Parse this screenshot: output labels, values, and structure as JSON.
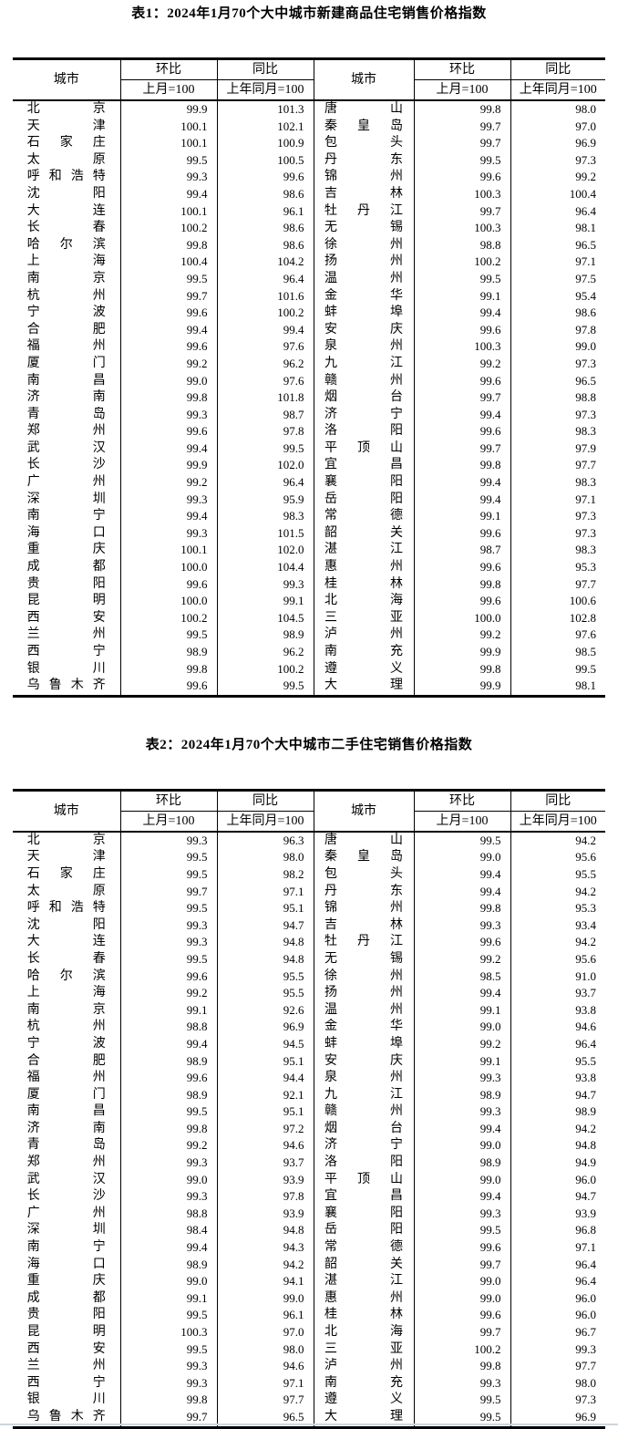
{
  "table1": {
    "title": "表1：2024年1月70个大中城市新建商品住宅销售价格指数",
    "headers": {
      "city": "城市",
      "mom": "环比",
      "yoy": "同比",
      "mom_base": "上月=100",
      "yoy_base": "上年同月=100"
    },
    "left_rows": [
      {
        "city": "北京",
        "mom": "99.9",
        "yoy": "101.3"
      },
      {
        "city": "天津",
        "mom": "100.1",
        "yoy": "102.1"
      },
      {
        "city": "石家庄",
        "mom": "100.1",
        "yoy": "100.9"
      },
      {
        "city": "太原",
        "mom": "99.5",
        "yoy": "100.5"
      },
      {
        "city": "呼和浩特",
        "mom": "99.3",
        "yoy": "99.6"
      },
      {
        "city": "沈阳",
        "mom": "99.4",
        "yoy": "98.6"
      },
      {
        "city": "大连",
        "mom": "100.1",
        "yoy": "96.1"
      },
      {
        "city": "长春",
        "mom": "100.2",
        "yoy": "98.6"
      },
      {
        "city": "哈尔滨",
        "mom": "99.8",
        "yoy": "98.6"
      },
      {
        "city": "上海",
        "mom": "100.4",
        "yoy": "104.2"
      },
      {
        "city": "南京",
        "mom": "99.5",
        "yoy": "96.4"
      },
      {
        "city": "杭州",
        "mom": "99.7",
        "yoy": "101.6"
      },
      {
        "city": "宁波",
        "mom": "99.6",
        "yoy": "100.2"
      },
      {
        "city": "合肥",
        "mom": "99.4",
        "yoy": "99.4"
      },
      {
        "city": "福州",
        "mom": "99.6",
        "yoy": "97.6"
      },
      {
        "city": "厦门",
        "mom": "99.2",
        "yoy": "96.2"
      },
      {
        "city": "南昌",
        "mom": "99.0",
        "yoy": "97.6"
      },
      {
        "city": "济南",
        "mom": "99.8",
        "yoy": "101.8"
      },
      {
        "city": "青岛",
        "mom": "99.3",
        "yoy": "98.7"
      },
      {
        "city": "郑州",
        "mom": "99.6",
        "yoy": "97.8"
      },
      {
        "city": "武汉",
        "mom": "99.4",
        "yoy": "99.5"
      },
      {
        "city": "长沙",
        "mom": "99.9",
        "yoy": "102.0"
      },
      {
        "city": "广州",
        "mom": "99.2",
        "yoy": "96.4"
      },
      {
        "city": "深圳",
        "mom": "99.3",
        "yoy": "95.9"
      },
      {
        "city": "南宁",
        "mom": "99.4",
        "yoy": "98.3"
      },
      {
        "city": "海口",
        "mom": "99.3",
        "yoy": "101.5"
      },
      {
        "city": "重庆",
        "mom": "100.1",
        "yoy": "102.0"
      },
      {
        "city": "成都",
        "mom": "100.0",
        "yoy": "104.4"
      },
      {
        "city": "贵阳",
        "mom": "99.6",
        "yoy": "99.3"
      },
      {
        "city": "昆明",
        "mom": "100.0",
        "yoy": "99.1"
      },
      {
        "city": "西安",
        "mom": "100.2",
        "yoy": "104.5"
      },
      {
        "city": "兰州",
        "mom": "99.5",
        "yoy": "98.9"
      },
      {
        "city": "西宁",
        "mom": "98.9",
        "yoy": "96.2"
      },
      {
        "city": "银川",
        "mom": "99.8",
        "yoy": "100.2"
      },
      {
        "city": "乌鲁木齐",
        "mom": "99.6",
        "yoy": "99.5"
      }
    ],
    "right_rows": [
      {
        "city": "唐山",
        "mom": "99.8",
        "yoy": "98.0"
      },
      {
        "city": "秦皇岛",
        "mom": "99.7",
        "yoy": "97.0"
      },
      {
        "city": "包头",
        "mom": "99.7",
        "yoy": "96.9"
      },
      {
        "city": "丹东",
        "mom": "99.5",
        "yoy": "97.3"
      },
      {
        "city": "锦州",
        "mom": "99.6",
        "yoy": "99.2"
      },
      {
        "city": "吉林",
        "mom": "100.3",
        "yoy": "100.4"
      },
      {
        "city": "牡丹江",
        "mom": "99.7",
        "yoy": "96.4"
      },
      {
        "city": "无锡",
        "mom": "100.3",
        "yoy": "98.1"
      },
      {
        "city": "徐州",
        "mom": "98.8",
        "yoy": "96.5"
      },
      {
        "city": "扬州",
        "mom": "100.2",
        "yoy": "97.1"
      },
      {
        "city": "温州",
        "mom": "99.5",
        "yoy": "97.5"
      },
      {
        "city": "金华",
        "mom": "99.1",
        "yoy": "95.4"
      },
      {
        "city": "蚌埠",
        "mom": "99.4",
        "yoy": "98.6"
      },
      {
        "city": "安庆",
        "mom": "99.6",
        "yoy": "97.8"
      },
      {
        "city": "泉州",
        "mom": "100.3",
        "yoy": "99.0"
      },
      {
        "city": "九江",
        "mom": "99.2",
        "yoy": "97.3"
      },
      {
        "city": "赣州",
        "mom": "99.6",
        "yoy": "96.5"
      },
      {
        "city": "烟台",
        "mom": "99.7",
        "yoy": "98.8"
      },
      {
        "city": "济宁",
        "mom": "99.4",
        "yoy": "97.3"
      },
      {
        "city": "洛阳",
        "mom": "99.6",
        "yoy": "98.3"
      },
      {
        "city": "平顶山",
        "mom": "99.7",
        "yoy": "97.9"
      },
      {
        "city": "宜昌",
        "mom": "99.8",
        "yoy": "97.7"
      },
      {
        "city": "襄阳",
        "mom": "99.4",
        "yoy": "98.3"
      },
      {
        "city": "岳阳",
        "mom": "99.4",
        "yoy": "97.1"
      },
      {
        "city": "常德",
        "mom": "99.1",
        "yoy": "97.3"
      },
      {
        "city": "韶关",
        "mom": "99.6",
        "yoy": "97.3"
      },
      {
        "city": "湛江",
        "mom": "98.7",
        "yoy": "98.3"
      },
      {
        "city": "惠州",
        "mom": "99.6",
        "yoy": "95.3"
      },
      {
        "city": "桂林",
        "mom": "99.8",
        "yoy": "97.7"
      },
      {
        "city": "北海",
        "mom": "99.6",
        "yoy": "100.6"
      },
      {
        "city": "三亚",
        "mom": "100.0",
        "yoy": "102.8"
      },
      {
        "city": "泸州",
        "mom": "99.2",
        "yoy": "97.6"
      },
      {
        "city": "南充",
        "mom": "99.9",
        "yoy": "98.5"
      },
      {
        "city": "遵义",
        "mom": "99.8",
        "yoy": "99.5"
      },
      {
        "city": "大理",
        "mom": "99.9",
        "yoy": "98.1"
      }
    ]
  },
  "table2": {
    "title": "表2：2024年1月70个大中城市二手住宅销售价格指数",
    "headers": {
      "city": "城市",
      "mom": "环比",
      "yoy": "同比",
      "mom_base": "上月=100",
      "yoy_base": "上年同月=100"
    },
    "left_rows": [
      {
        "city": "北京",
        "mom": "99.3",
        "yoy": "96.3"
      },
      {
        "city": "天津",
        "mom": "99.5",
        "yoy": "98.0"
      },
      {
        "city": "石家庄",
        "mom": "99.5",
        "yoy": "98.2"
      },
      {
        "city": "太原",
        "mom": "99.7",
        "yoy": "97.1"
      },
      {
        "city": "呼和浩特",
        "mom": "99.5",
        "yoy": "95.1"
      },
      {
        "city": "沈阳",
        "mom": "99.3",
        "yoy": "94.7"
      },
      {
        "city": "大连",
        "mom": "99.3",
        "yoy": "94.8"
      },
      {
        "city": "长春",
        "mom": "99.5",
        "yoy": "94.8"
      },
      {
        "city": "哈尔滨",
        "mom": "99.6",
        "yoy": "95.5"
      },
      {
        "city": "上海",
        "mom": "99.2",
        "yoy": "95.5"
      },
      {
        "city": "南京",
        "mom": "99.1",
        "yoy": "92.6"
      },
      {
        "city": "杭州",
        "mom": "98.8",
        "yoy": "96.9"
      },
      {
        "city": "宁波",
        "mom": "99.4",
        "yoy": "94.5"
      },
      {
        "city": "合肥",
        "mom": "98.9",
        "yoy": "95.1"
      },
      {
        "city": "福州",
        "mom": "99.6",
        "yoy": "94.4"
      },
      {
        "city": "厦门",
        "mom": "98.9",
        "yoy": "92.1"
      },
      {
        "city": "南昌",
        "mom": "99.5",
        "yoy": "95.1"
      },
      {
        "city": "济南",
        "mom": "99.8",
        "yoy": "97.2"
      },
      {
        "city": "青岛",
        "mom": "99.2",
        "yoy": "94.6"
      },
      {
        "city": "郑州",
        "mom": "99.3",
        "yoy": "93.7"
      },
      {
        "city": "武汉",
        "mom": "99.0",
        "yoy": "93.9"
      },
      {
        "city": "长沙",
        "mom": "99.3",
        "yoy": "97.8"
      },
      {
        "city": "广州",
        "mom": "98.8",
        "yoy": "93.9"
      },
      {
        "city": "深圳",
        "mom": "98.4",
        "yoy": "94.8"
      },
      {
        "city": "南宁",
        "mom": "99.4",
        "yoy": "94.3"
      },
      {
        "city": "海口",
        "mom": "98.9",
        "yoy": "94.2"
      },
      {
        "city": "重庆",
        "mom": "99.0",
        "yoy": "94.1"
      },
      {
        "city": "成都",
        "mom": "99.1",
        "yoy": "99.0"
      },
      {
        "city": "贵阳",
        "mom": "99.5",
        "yoy": "96.1"
      },
      {
        "city": "昆明",
        "mom": "100.3",
        "yoy": "97.0"
      },
      {
        "city": "西安",
        "mom": "99.5",
        "yoy": "98.0"
      },
      {
        "city": "兰州",
        "mom": "99.3",
        "yoy": "94.6"
      },
      {
        "city": "西宁",
        "mom": "99.3",
        "yoy": "97.1"
      },
      {
        "city": "银川",
        "mom": "99.8",
        "yoy": "97.7"
      },
      {
        "city": "乌鲁木齐",
        "mom": "99.7",
        "yoy": "96.5"
      }
    ],
    "right_rows": [
      {
        "city": "唐山",
        "mom": "99.5",
        "yoy": "94.2"
      },
      {
        "city": "秦皇岛",
        "mom": "99.0",
        "yoy": "95.6"
      },
      {
        "city": "包头",
        "mom": "99.4",
        "yoy": "95.5"
      },
      {
        "city": "丹东",
        "mom": "99.4",
        "yoy": "94.2"
      },
      {
        "city": "锦州",
        "mom": "99.8",
        "yoy": "95.3"
      },
      {
        "city": "吉林",
        "mom": "99.3",
        "yoy": "93.4"
      },
      {
        "city": "牡丹江",
        "mom": "99.6",
        "yoy": "94.2"
      },
      {
        "city": "无锡",
        "mom": "99.2",
        "yoy": "95.6"
      },
      {
        "city": "徐州",
        "mom": "98.5",
        "yoy": "91.0"
      },
      {
        "city": "扬州",
        "mom": "99.4",
        "yoy": "93.7"
      },
      {
        "city": "温州",
        "mom": "99.1",
        "yoy": "93.8"
      },
      {
        "city": "金华",
        "mom": "99.0",
        "yoy": "94.6"
      },
      {
        "city": "蚌埠",
        "mom": "99.2",
        "yoy": "96.4"
      },
      {
        "city": "安庆",
        "mom": "99.1",
        "yoy": "95.5"
      },
      {
        "city": "泉州",
        "mom": "99.3",
        "yoy": "93.8"
      },
      {
        "city": "九江",
        "mom": "98.9",
        "yoy": "94.7"
      },
      {
        "city": "赣州",
        "mom": "99.3",
        "yoy": "98.9"
      },
      {
        "city": "烟台",
        "mom": "99.4",
        "yoy": "94.2"
      },
      {
        "city": "济宁",
        "mom": "99.0",
        "yoy": "94.8"
      },
      {
        "city": "洛阳",
        "mom": "98.9",
        "yoy": "94.9"
      },
      {
        "city": "平顶山",
        "mom": "99.0",
        "yoy": "96.0"
      },
      {
        "city": "宜昌",
        "mom": "99.4",
        "yoy": "94.7"
      },
      {
        "city": "襄阳",
        "mom": "99.3",
        "yoy": "93.9"
      },
      {
        "city": "岳阳",
        "mom": "99.5",
        "yoy": "96.8"
      },
      {
        "city": "常德",
        "mom": "99.6",
        "yoy": "97.1"
      },
      {
        "city": "韶关",
        "mom": "99.7",
        "yoy": "96.4"
      },
      {
        "city": "湛江",
        "mom": "99.0",
        "yoy": "96.4"
      },
      {
        "city": "惠州",
        "mom": "99.0",
        "yoy": "96.0"
      },
      {
        "city": "桂林",
        "mom": "99.6",
        "yoy": "96.0"
      },
      {
        "city": "北海",
        "mom": "99.7",
        "yoy": "96.7"
      },
      {
        "city": "三亚",
        "mom": "100.2",
        "yoy": "99.3"
      },
      {
        "city": "泸州",
        "mom": "99.8",
        "yoy": "97.7"
      },
      {
        "city": "南充",
        "mom": "99.3",
        "yoy": "98.0"
      },
      {
        "city": "遵义",
        "mom": "99.5",
        "yoy": "97.3"
      },
      {
        "city": "大理",
        "mom": "99.5",
        "yoy": "96.9"
      }
    ]
  }
}
